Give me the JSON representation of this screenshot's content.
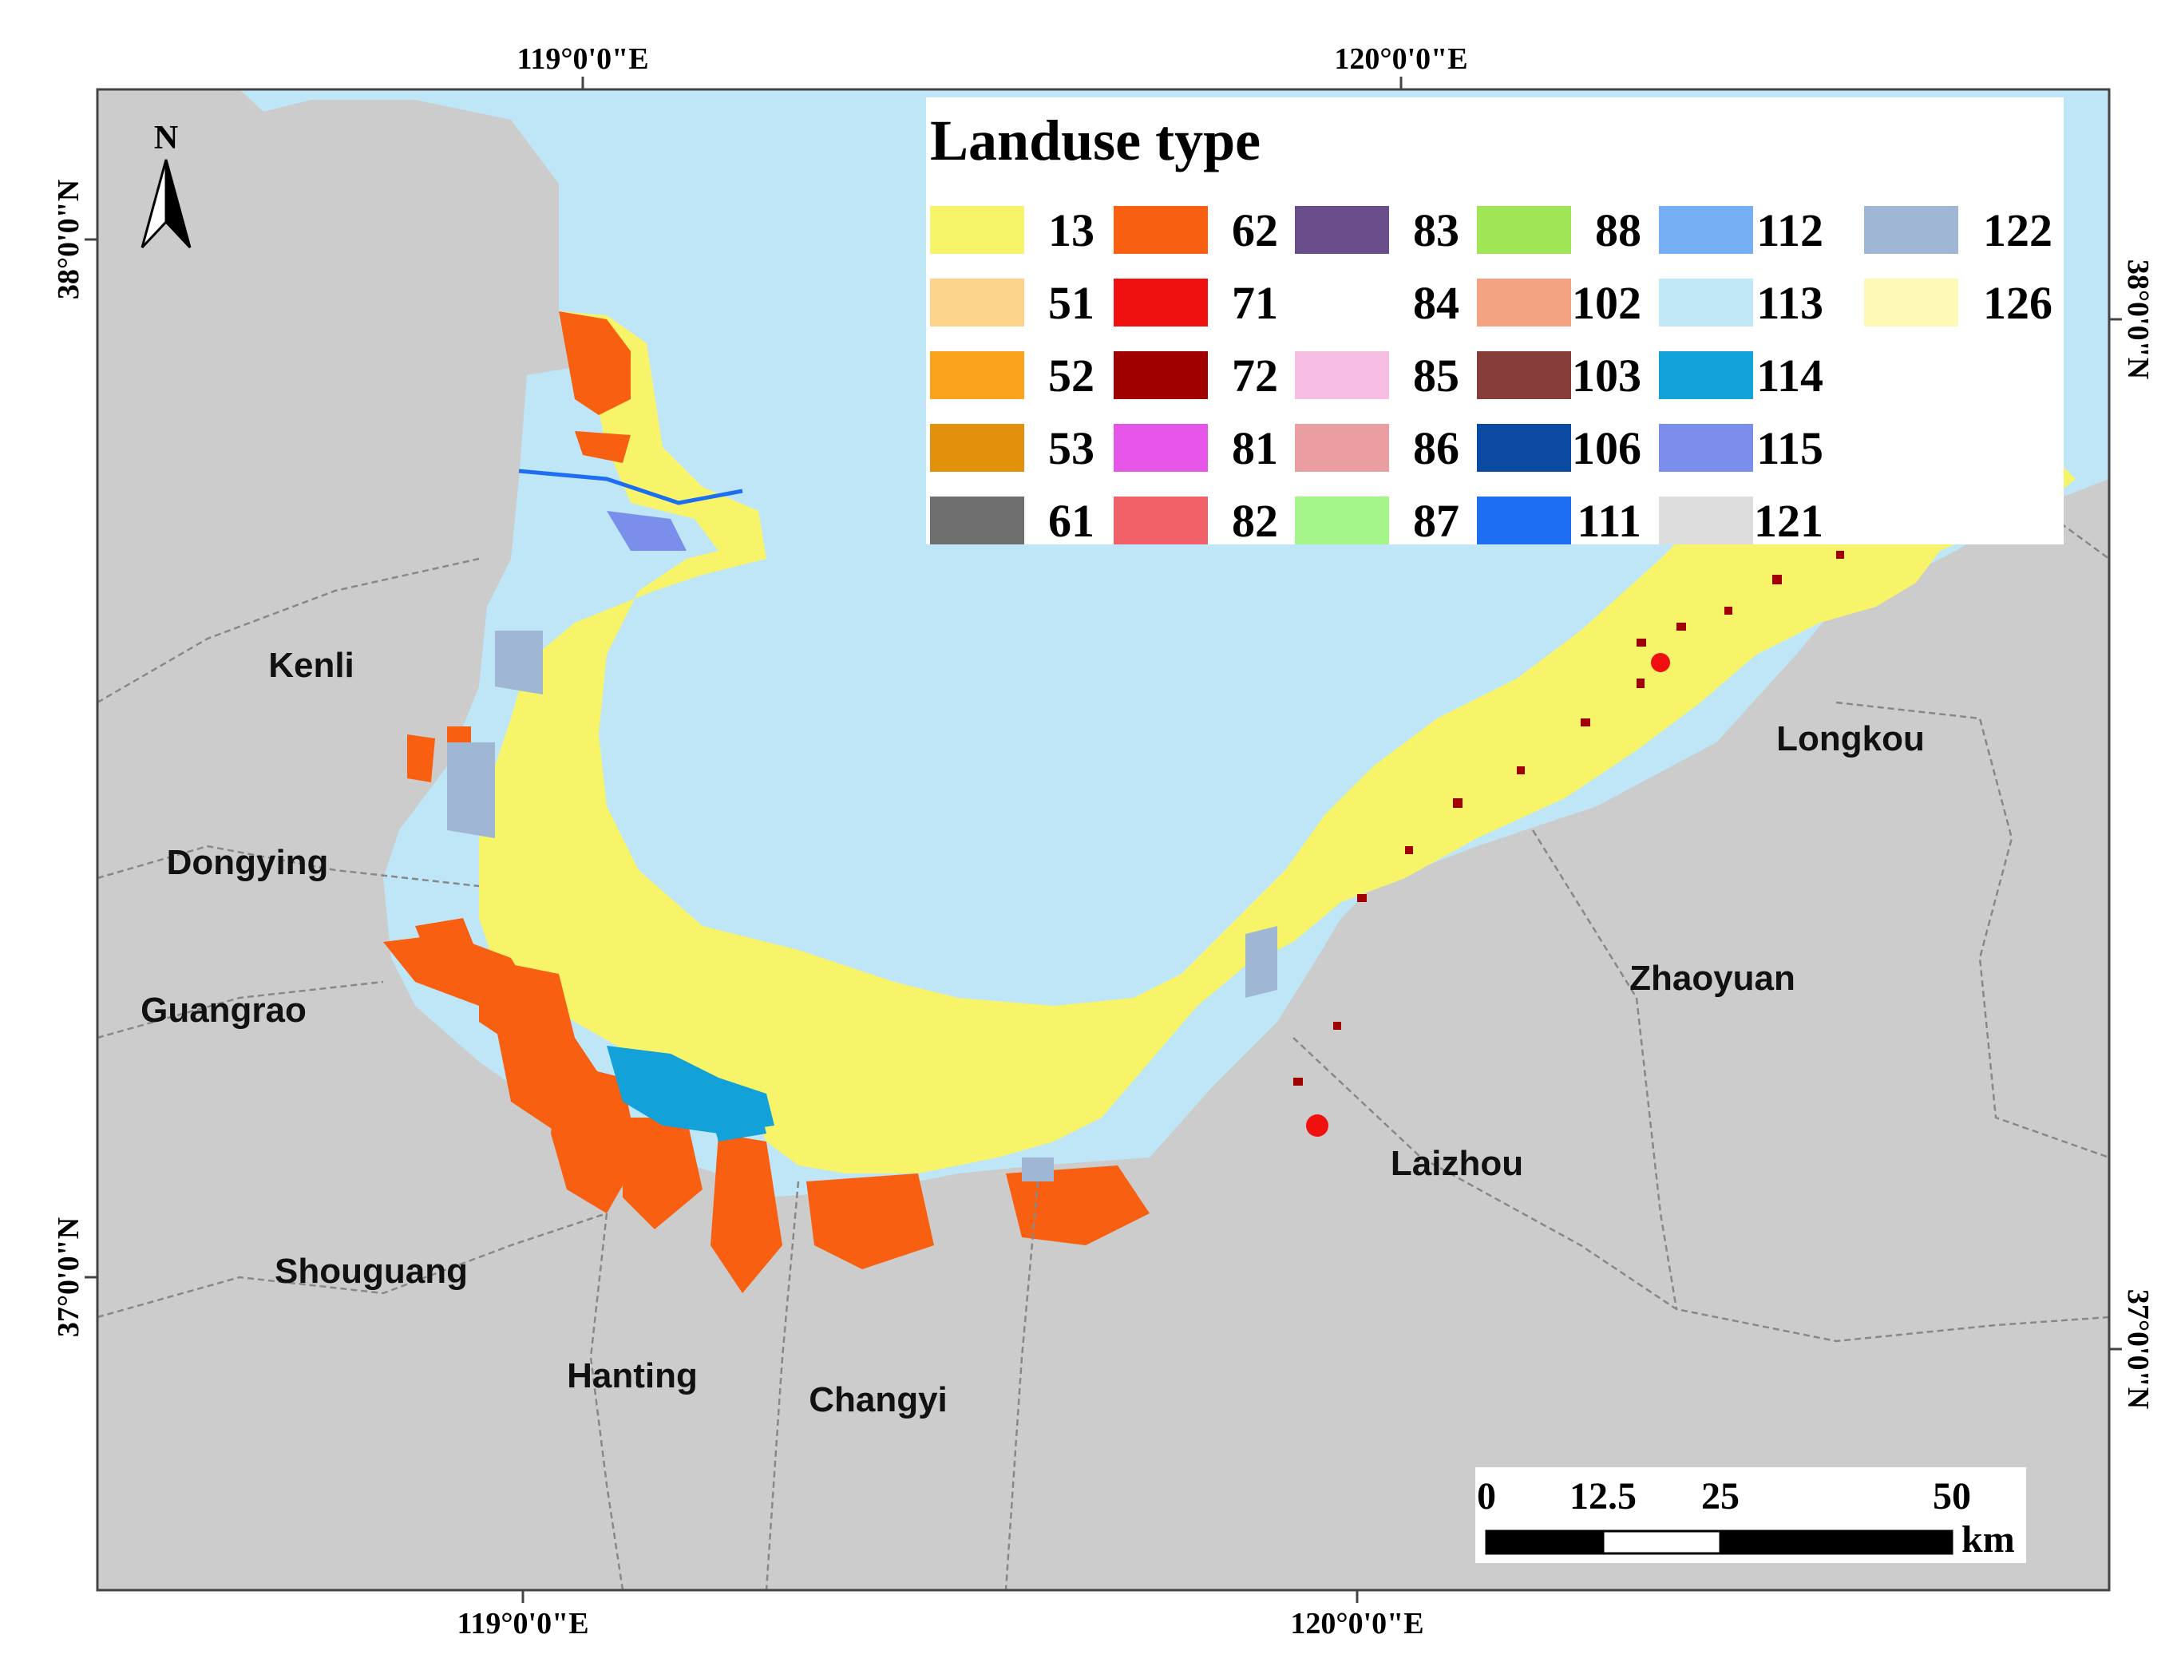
{
  "map": {
    "colors": {
      "sea": "#bfe6f7",
      "land": "#cccccc",
      "boundary": "#888888",
      "legend_bg": "#ffffff",
      "frame": "#444444"
    },
    "coordinates": {
      "top_labels": [
        "119°0'0\"E",
        "120°0'0\"E"
      ],
      "bottom_labels": [
        "119°0'0\"E",
        "120°0'0\"E"
      ],
      "left_labels": [
        "38°0'0\"N",
        "37°0'0\"N"
      ],
      "right_labels": [
        "38°0'0\"N",
        "37°0'0\"N"
      ]
    },
    "north_arrow": {
      "label": "N"
    },
    "regions": [
      {
        "name": "Kenli"
      },
      {
        "name": "Dongying"
      },
      {
        "name": "Guangrao"
      },
      {
        "name": "Shouguang"
      },
      {
        "name": "Hanting"
      },
      {
        "name": "Changyi"
      },
      {
        "name": "Laizhou"
      },
      {
        "name": "Zhaoyuan"
      },
      {
        "name": "Longkou"
      }
    ],
    "legend": {
      "title": "Landuse type",
      "items": [
        {
          "code": "13",
          "color": "#f7f46a"
        },
        {
          "code": "51",
          "color": "#fbd38a"
        },
        {
          "code": "52",
          "color": "#fba31a"
        },
        {
          "code": "53",
          "color": "#e3900c"
        },
        {
          "code": "61",
          "color": "#6e6e6e"
        },
        {
          "code": "62",
          "color": "#f95f10"
        },
        {
          "code": "71",
          "color": "#f01010"
        },
        {
          "code": "72",
          "color": "#a10000"
        },
        {
          "code": "81",
          "color": "#e455e8"
        },
        {
          "code": "82",
          "color": "#ef6068"
        },
        {
          "code": "83",
          "color": "#6a4e8c"
        },
        {
          "code": "84",
          "color": "#ffffff"
        },
        {
          "code": "85",
          "color": "#f8bde3"
        },
        {
          "code": "86",
          "color": "#ea9ea2"
        },
        {
          "code": "87",
          "color": "#a5f58a"
        },
        {
          "code": "88",
          "color": "#9ee655"
        },
        {
          "code": "102",
          "color": "#f3a381"
        },
        {
          "code": "103",
          "color": "#873e3a"
        },
        {
          "code": "106",
          "color": "#0b4aa3"
        },
        {
          "code": "111",
          "color": "#1d6ef2"
        },
        {
          "code": "112",
          "color": "#75aef2"
        },
        {
          "code": "113",
          "color": "#c2e8f7"
        },
        {
          "code": "114",
          "color": "#12a1d9"
        },
        {
          "code": "115",
          "color": "#7c8eeb"
        },
        {
          "code": "121",
          "color": "#dddddd"
        },
        {
          "code": "122",
          "color": "#9fb7d4"
        },
        {
          "code": "126",
          "color": "#fff9b8"
        }
      ]
    },
    "scale_bar": {
      "ticks": [
        "0",
        "12.5",
        "25",
        "50"
      ],
      "unit": "km"
    }
  }
}
